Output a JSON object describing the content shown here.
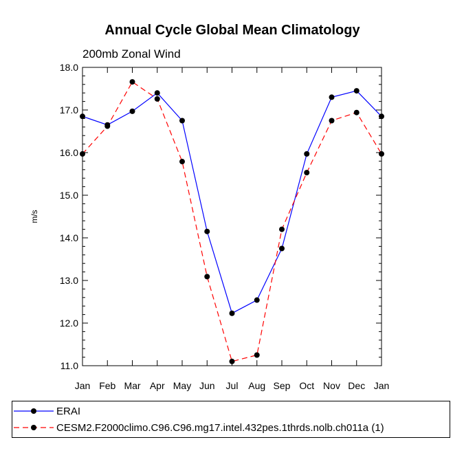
{
  "chart_data": {
    "type": "line",
    "title": "Annual Cycle Global Mean Climatology",
    "subtitle": "200mb Zonal Wind",
    "xlabel": "",
    "ylabel": "m/s",
    "categories": [
      "Jan",
      "Feb",
      "Mar",
      "Apr",
      "May",
      "Jun",
      "Jul",
      "Aug",
      "Sep",
      "Oct",
      "Nov",
      "Dec",
      "Jan"
    ],
    "ylim": [
      11.0,
      18.0
    ],
    "yticks": [
      "11.0",
      "12.0",
      "13.0",
      "14.0",
      "15.0",
      "16.0",
      "17.0",
      "18.0"
    ],
    "grid": false,
    "legend_position": "bottom",
    "series": [
      {
        "name": "ERAI",
        "color": "#0000ff",
        "style": "solid",
        "values": [
          16.85,
          16.65,
          16.97,
          17.4,
          16.75,
          14.15,
          12.23,
          12.54,
          13.75,
          15.97,
          17.3,
          17.45,
          16.85
        ]
      },
      {
        "name": "CESM2.F2000climo.C96.C96.mg17.intel.432pes.1thrds.nolb.ch011a (1)",
        "color": "#ff0000",
        "style": "dashed",
        "values": [
          15.97,
          16.62,
          17.66,
          17.26,
          15.79,
          13.09,
          11.1,
          11.25,
          14.2,
          15.53,
          16.75,
          16.94,
          15.97
        ]
      }
    ]
  }
}
